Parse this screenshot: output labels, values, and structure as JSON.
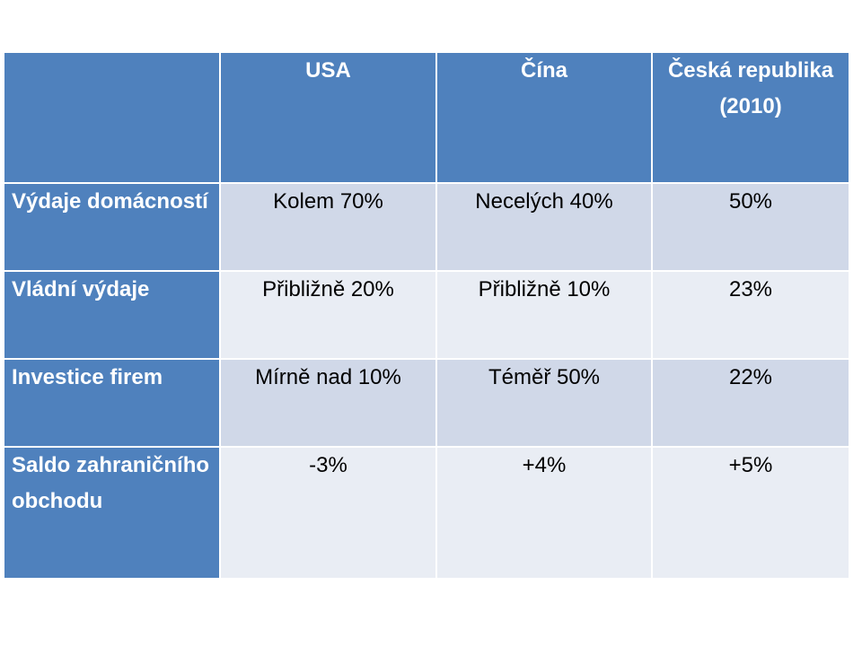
{
  "table": {
    "header": [
      "",
      "USA",
      "Čína",
      "Česká republika (2010)"
    ],
    "rows": [
      {
        "label": "Výdaje domácností",
        "cells": [
          "Kolem 70%",
          "Necelých 40%",
          "50%"
        ]
      },
      {
        "label": "Vládní výdaje",
        "cells": [
          "Přibližně 20%",
          "Přibližně 10%",
          "23%"
        ]
      },
      {
        "label": "Investice firem",
        "cells": [
          "Mírně nad 10%",
          "Téměř 50%",
          "22%"
        ]
      },
      {
        "label": "Saldo zahraničního obchodu",
        "cells": [
          "-3%",
          "+4%",
          "+5%"
        ]
      }
    ]
  },
  "colors": {
    "header_bg": "#4f81bd",
    "row_dark_bg": "#d0d8e8",
    "row_light_bg": "#e9edf4",
    "header_text": "#ffffff"
  }
}
